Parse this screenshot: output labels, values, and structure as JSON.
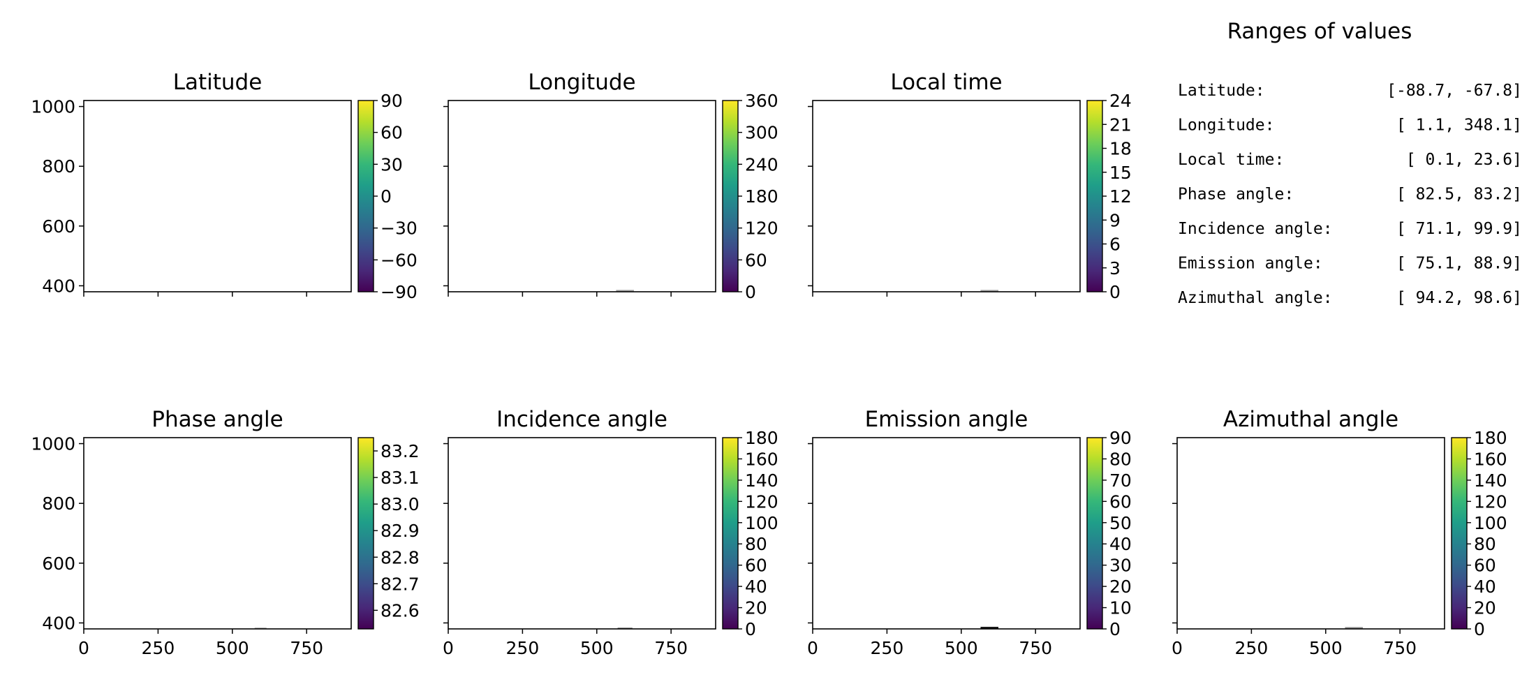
{
  "chart_data": [
    {
      "type": "heatmap",
      "title": "Latitude",
      "xlim": [
        0,
        900
      ],
      "ylim": [
        380,
        1020
      ],
      "xticks": [],
      "yticks": [
        400,
        600,
        800,
        1000
      ],
      "colorbar": {
        "colormap": "viridis",
        "range": [
          -90,
          90
        ],
        "ticks": [
          -90,
          -60,
          -30,
          0,
          30,
          60,
          90
        ],
        "tick_labels": [
          "−90",
          "−60",
          "−30",
          "0",
          "30",
          "60",
          "90"
        ]
      },
      "footprint": null
    },
    {
      "type": "heatmap",
      "title": "Longitude",
      "xlim": [
        0,
        900
      ],
      "ylim": [
        380,
        1020
      ],
      "xticks": [],
      "yticks": [],
      "colorbar": {
        "colormap": "viridis",
        "range": [
          0,
          360
        ],
        "ticks": [
          0,
          60,
          120,
          180,
          240,
          300,
          360
        ],
        "tick_labels": [
          "0",
          "60",
          "120",
          "180",
          "240",
          "300",
          "360"
        ]
      },
      "footprint": {
        "x": [
          565,
          625
        ],
        "y": [
          381,
          386
        ],
        "color": "#9a9a9a"
      }
    },
    {
      "type": "heatmap",
      "title": "Local time",
      "xlim": [
        0,
        900
      ],
      "ylim": [
        380,
        1020
      ],
      "xticks": [],
      "yticks": [],
      "colorbar": {
        "colormap": "viridis",
        "range": [
          0,
          24
        ],
        "ticks": [
          0,
          3,
          6,
          9,
          12,
          15,
          18,
          21,
          24
        ],
        "tick_labels": [
          "0",
          "3",
          "6",
          "9",
          "12",
          "15",
          "18",
          "21",
          "24"
        ]
      },
      "footprint": {
        "x": [
          565,
          625
        ],
        "y": [
          381,
          386
        ],
        "color": "#9a9a9a"
      }
    },
    {
      "type": "heatmap",
      "title": "Phase angle",
      "xlim": [
        0,
        900
      ],
      "ylim": [
        380,
        1020
      ],
      "xticks": [
        0,
        250,
        500,
        750
      ],
      "yticks": [
        400,
        600,
        800,
        1000
      ],
      "colorbar": {
        "colormap": "viridis",
        "range": [
          82.53,
          83.25
        ],
        "ticks": [
          82.6,
          82.7,
          82.8,
          82.9,
          83.0,
          83.1,
          83.2
        ],
        "tick_labels": [
          "82.6",
          "82.7",
          "82.8",
          "82.9",
          "83.0",
          "83.1",
          "83.2"
        ]
      },
      "footprint": {
        "x": [
          575,
          615
        ],
        "y": [
          381,
          384
        ],
        "color": "#9a9a9a"
      }
    },
    {
      "type": "heatmap",
      "title": "Incidence angle",
      "xlim": [
        0,
        900
      ],
      "ylim": [
        380,
        1020
      ],
      "xticks": [
        0,
        250,
        500,
        750
      ],
      "yticks": [],
      "colorbar": {
        "colormap": "viridis",
        "range": [
          0,
          180
        ],
        "ticks": [
          0,
          20,
          40,
          60,
          80,
          100,
          120,
          140,
          160,
          180
        ],
        "tick_labels": [
          "0",
          "20",
          "40",
          "60",
          "80",
          "100",
          "120",
          "140",
          "160",
          "180"
        ]
      },
      "footprint": {
        "x": [
          570,
          620
        ],
        "y": [
          381,
          384
        ],
        "color": "#6a6a6a"
      }
    },
    {
      "type": "heatmap",
      "title": "Emission angle",
      "xlim": [
        0,
        900
      ],
      "ylim": [
        380,
        1020
      ],
      "xticks": [
        0,
        250,
        500,
        750
      ],
      "yticks": [],
      "colorbar": {
        "colormap": "viridis",
        "range": [
          0,
          90
        ],
        "ticks": [
          0,
          10,
          20,
          30,
          40,
          50,
          60,
          70,
          80,
          90
        ],
        "tick_labels": [
          "0",
          "10",
          "20",
          "30",
          "40",
          "50",
          "60",
          "70",
          "80",
          "90"
        ]
      },
      "footprint": {
        "x": [
          565,
          625
        ],
        "y": [
          381,
          387
        ],
        "color": "#1a1a1a"
      }
    },
    {
      "type": "heatmap",
      "title": "Azimuthal angle",
      "xlim": [
        0,
        900
      ],
      "ylim": [
        380,
        1020
      ],
      "xticks": [
        0,
        250,
        500,
        750
      ],
      "yticks": [],
      "colorbar": {
        "colormap": "viridis",
        "range": [
          0,
          180
        ],
        "ticks": [
          0,
          20,
          40,
          60,
          80,
          100,
          120,
          140,
          160,
          180
        ],
        "tick_labels": [
          "0",
          "20",
          "40",
          "60",
          "80",
          "100",
          "120",
          "140",
          "160",
          "180"
        ]
      },
      "footprint": {
        "x": [
          565,
          625
        ],
        "y": [
          381,
          386
        ],
        "color": "#8a8a8a"
      }
    }
  ],
  "ranges_panel": {
    "title": "Ranges of values",
    "rows": [
      {
        "label": "Latitude:",
        "value": "[-88.7, -67.8]"
      },
      {
        "label": "Longitude:",
        "value": "[  1.1, 348.1]"
      },
      {
        "label": "Local time:",
        "value": "[  0.1,  23.6]"
      },
      {
        "label": "Phase angle:",
        "value": "[ 82.5,  83.2]"
      },
      {
        "label": "Incidence angle:",
        "value": "[ 71.1,  99.9]"
      },
      {
        "label": "Emission angle:",
        "value": "[ 75.1,  88.9]"
      },
      {
        "label": "Azimuthal angle:",
        "value": "[ 94.2,  98.6]"
      }
    ]
  },
  "colors": {
    "viridis": [
      "#440154",
      "#482878",
      "#3e4989",
      "#31688e",
      "#26828e",
      "#1f9e89",
      "#35b779",
      "#6ece58",
      "#b5de2b",
      "#fde725"
    ]
  }
}
